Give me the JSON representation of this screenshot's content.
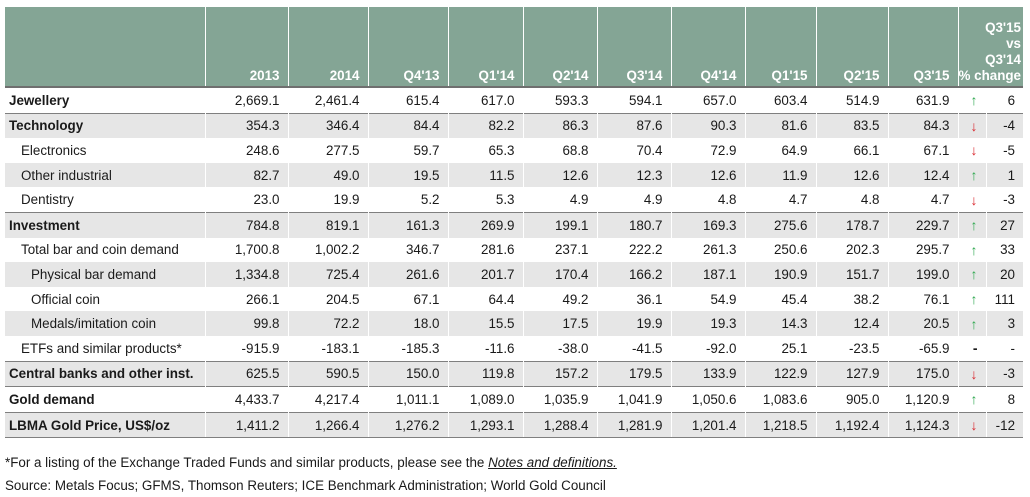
{
  "table": {
    "columns": [
      "",
      "2013",
      "2014",
      "Q4'13",
      "Q1'14",
      "Q2'14",
      "Q3'14",
      "Q4'14",
      "Q1'15",
      "Q2'15",
      "Q3'15"
    ],
    "change_header": [
      "Q3'15",
      "vs",
      "Q3'14",
      "% change"
    ],
    "rows": [
      {
        "label": "Jewellery",
        "values": [
          "2,669.1",
          "2,461.4",
          "615.4",
          "617.0",
          "593.3",
          "594.1",
          "657.0",
          "603.4",
          "514.9",
          "631.9"
        ],
        "arrow": "↑",
        "change": "6"
      },
      {
        "label": "Technology",
        "values": [
          "354.3",
          "346.4",
          "84.4",
          "82.2",
          "86.3",
          "87.6",
          "90.3",
          "81.6",
          "83.5",
          "84.3"
        ],
        "arrow": "↓",
        "change": "-4"
      },
      {
        "label": "Electronics",
        "values": [
          "248.6",
          "277.5",
          "59.7",
          "65.3",
          "68.8",
          "70.4",
          "72.9",
          "64.9",
          "66.1",
          "67.1"
        ],
        "arrow": "↓",
        "change": "-5"
      },
      {
        "label": "Other industrial",
        "values": [
          "82.7",
          "49.0",
          "19.5",
          "11.5",
          "12.6",
          "12.3",
          "12.6",
          "11.9",
          "12.6",
          "12.4"
        ],
        "arrow": "↑",
        "change": "1"
      },
      {
        "label": "Dentistry",
        "values": [
          "23.0",
          "19.9",
          "5.2",
          "5.3",
          "4.9",
          "4.9",
          "4.8",
          "4.7",
          "4.8",
          "4.7"
        ],
        "arrow": "↓",
        "change": "-3"
      },
      {
        "label": "Investment",
        "values": [
          "784.8",
          "819.1",
          "161.3",
          "269.9",
          "199.1",
          "180.7",
          "169.3",
          "275.6",
          "178.7",
          "229.7"
        ],
        "arrow": "↑",
        "change": "27"
      },
      {
        "label": "Total bar and coin demand",
        "values": [
          "1,700.8",
          "1,002.2",
          "346.7",
          "281.6",
          "237.1",
          "222.2",
          "261.3",
          "250.6",
          "202.3",
          "295.7"
        ],
        "arrow": "↑",
        "change": "33"
      },
      {
        "label": "Physical bar demand",
        "values": [
          "1,334.8",
          "725.4",
          "261.6",
          "201.7",
          "170.4",
          "166.2",
          "187.1",
          "190.9",
          "151.7",
          "199.0"
        ],
        "arrow": "↑",
        "change": "20"
      },
      {
        "label": "Official coin",
        "values": [
          "266.1",
          "204.5",
          "67.1",
          "64.4",
          "49.2",
          "36.1",
          "54.9",
          "45.4",
          "38.2",
          "76.1"
        ],
        "arrow": "↑",
        "change": "111"
      },
      {
        "label": "Medals/imitation coin",
        "values": [
          "99.8",
          "72.2",
          "18.0",
          "15.5",
          "17.5",
          "19.9",
          "19.3",
          "14.3",
          "12.4",
          "20.5"
        ],
        "arrow": "↑",
        "change": "3"
      },
      {
        "label": "ETFs and similar products*",
        "values": [
          "-915.9",
          "-183.1",
          "-185.3",
          "-11.6",
          "-38.0",
          "-41.5",
          "-92.0",
          "25.1",
          "-23.5",
          "-65.9"
        ],
        "arrow": "-",
        "change": "-"
      },
      {
        "label": "Central banks and other inst.",
        "values": [
          "625.5",
          "590.5",
          "150.0",
          "119.8",
          "157.2",
          "179.5",
          "133.9",
          "122.9",
          "127.9",
          "175.0"
        ],
        "arrow": "↓",
        "change": "-3"
      },
      {
        "label": "Gold demand",
        "values": [
          "4,433.7",
          "4,217.4",
          "1,011.1",
          "1,089.0",
          "1,035.9",
          "1,041.9",
          "1,050.6",
          "1,083.6",
          "905.0",
          "1,120.9"
        ],
        "arrow": "↑",
        "change": "8"
      },
      {
        "label": "LBMA Gold Price, US$/oz",
        "values": [
          "1,411.2",
          "1,266.4",
          "1,276.2",
          "1,293.1",
          "1,288.4",
          "1,281.9",
          "1,201.4",
          "1,218.5",
          "1,192.4",
          "1,124.3"
        ],
        "arrow": "↓",
        "change": "-12"
      }
    ]
  },
  "footnote": {
    "prefix": "*For a listing of the Exchange Traded Funds and similar products, please see the ",
    "link": "Notes and definitions.",
    "source": "Source: Metals Focus; GFMS, Thomson Reuters; ICE Benchmark Administration; World Gold Council"
  },
  "colors": {
    "header": "#84a595",
    "shade": "#e6e6e6",
    "up": "#2fa84f",
    "down": "#d9262c"
  }
}
